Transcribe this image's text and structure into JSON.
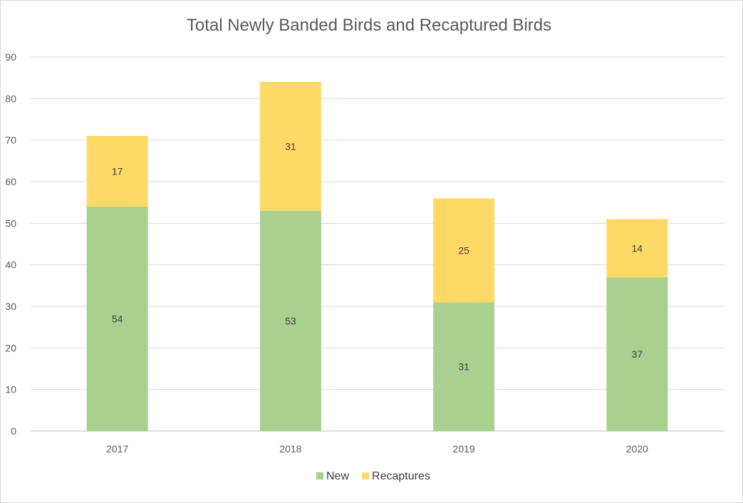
{
  "chart_data": {
    "type": "bar",
    "stacked": true,
    "title": "Total Newly Banded Birds and Recaptured Birds",
    "xlabel": "",
    "ylabel": "",
    "categories": [
      "2017",
      "2018",
      "2019",
      "2020"
    ],
    "series": [
      {
        "name": "New",
        "color": "#a9d08e",
        "values": [
          54,
          53,
          31,
          37
        ]
      },
      {
        "name": "Recaptures",
        "color": "#ffd966",
        "values": [
          17,
          31,
          25,
          14
        ]
      }
    ],
    "ylim": [
      0,
      90
    ],
    "yticks": [
      0,
      10,
      20,
      30,
      40,
      50,
      60,
      70,
      80,
      90
    ],
    "grid": true,
    "legend_position": "bottom",
    "data_labels": true
  }
}
